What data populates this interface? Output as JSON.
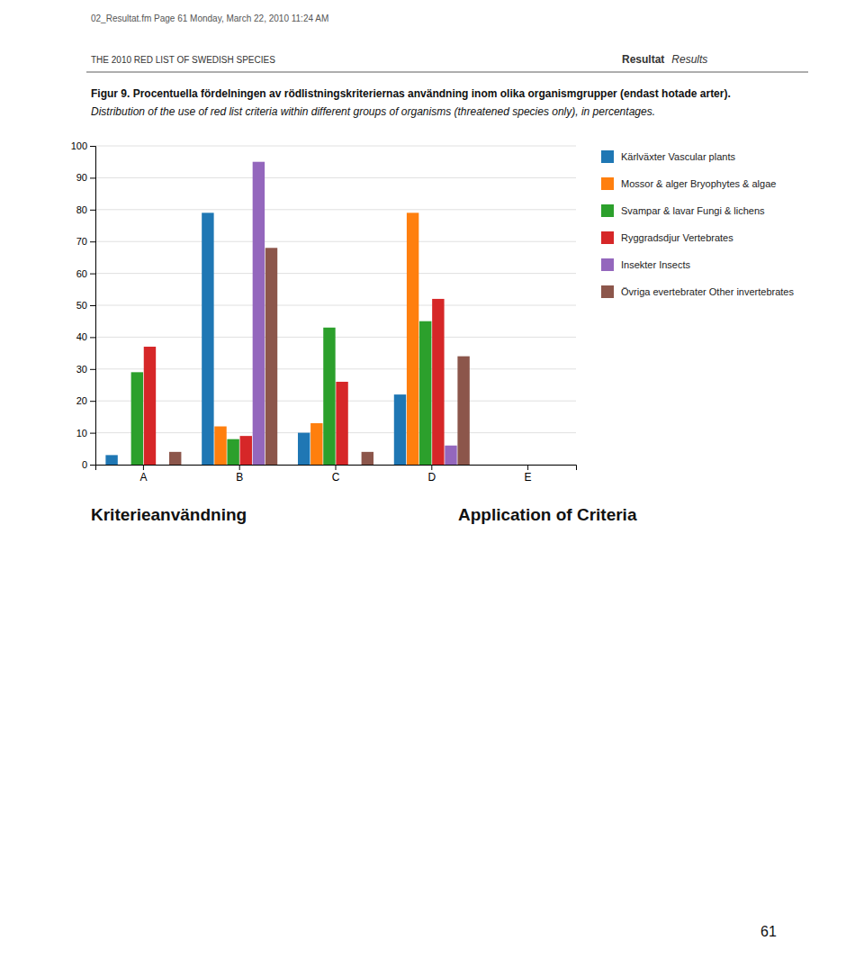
{
  "chart_data": {
    "type": "bar",
    "title": "Figur 9. Procentuella fördelningen av rödlistningskriteriernas användning inom olika organismgrupper (endast hotade arter).",
    "subtitle": "Distribution of the use of red list criteria within different groups of organisms (threatened species only), in percentages.",
    "categories": [
      "A",
      "B",
      "C",
      "D",
      "E"
    ],
    "series": [
      {
        "name": "Kärlväxter Vascular plants",
        "values": [
          3,
          79,
          10,
          22,
          0
        ]
      },
      {
        "name": "Mossor & alger Bryophytes & algae",
        "values": [
          0,
          12,
          13,
          79,
          0
        ]
      },
      {
        "name": "Svampar & lavar Fungi & lichens",
        "values": [
          29,
          8,
          43,
          45,
          0
        ]
      },
      {
        "name": "Ryggradsdjur Vertebrates",
        "values": [
          37,
          9,
          26,
          52,
          0
        ]
      },
      {
        "name": "Insekter Insects",
        "values": [
          0,
          95,
          0,
          6,
          0
        ]
      },
      {
        "name": "Övriga evertebrater Other invertebrates",
        "values": [
          4,
          68,
          4,
          34,
          0
        ]
      }
    ],
    "ylim": [
      0,
      100
    ],
    "yticks": [
      0,
      10,
      20,
      30,
      40,
      50,
      60,
      70,
      80,
      90,
      100
    ],
    "grid": true,
    "legend": "right",
    "annotations": [
      "02_Resultat.fm  Page 61  Monday, March 22, 2010  11:24 AM",
      "THE 2010 RED LIST OF SWEDISH SPECIES",
      "Resultat",
      "Results",
      "Kriterieanvändning",
      "Application of Criteria",
      "61"
    ]
  }
}
